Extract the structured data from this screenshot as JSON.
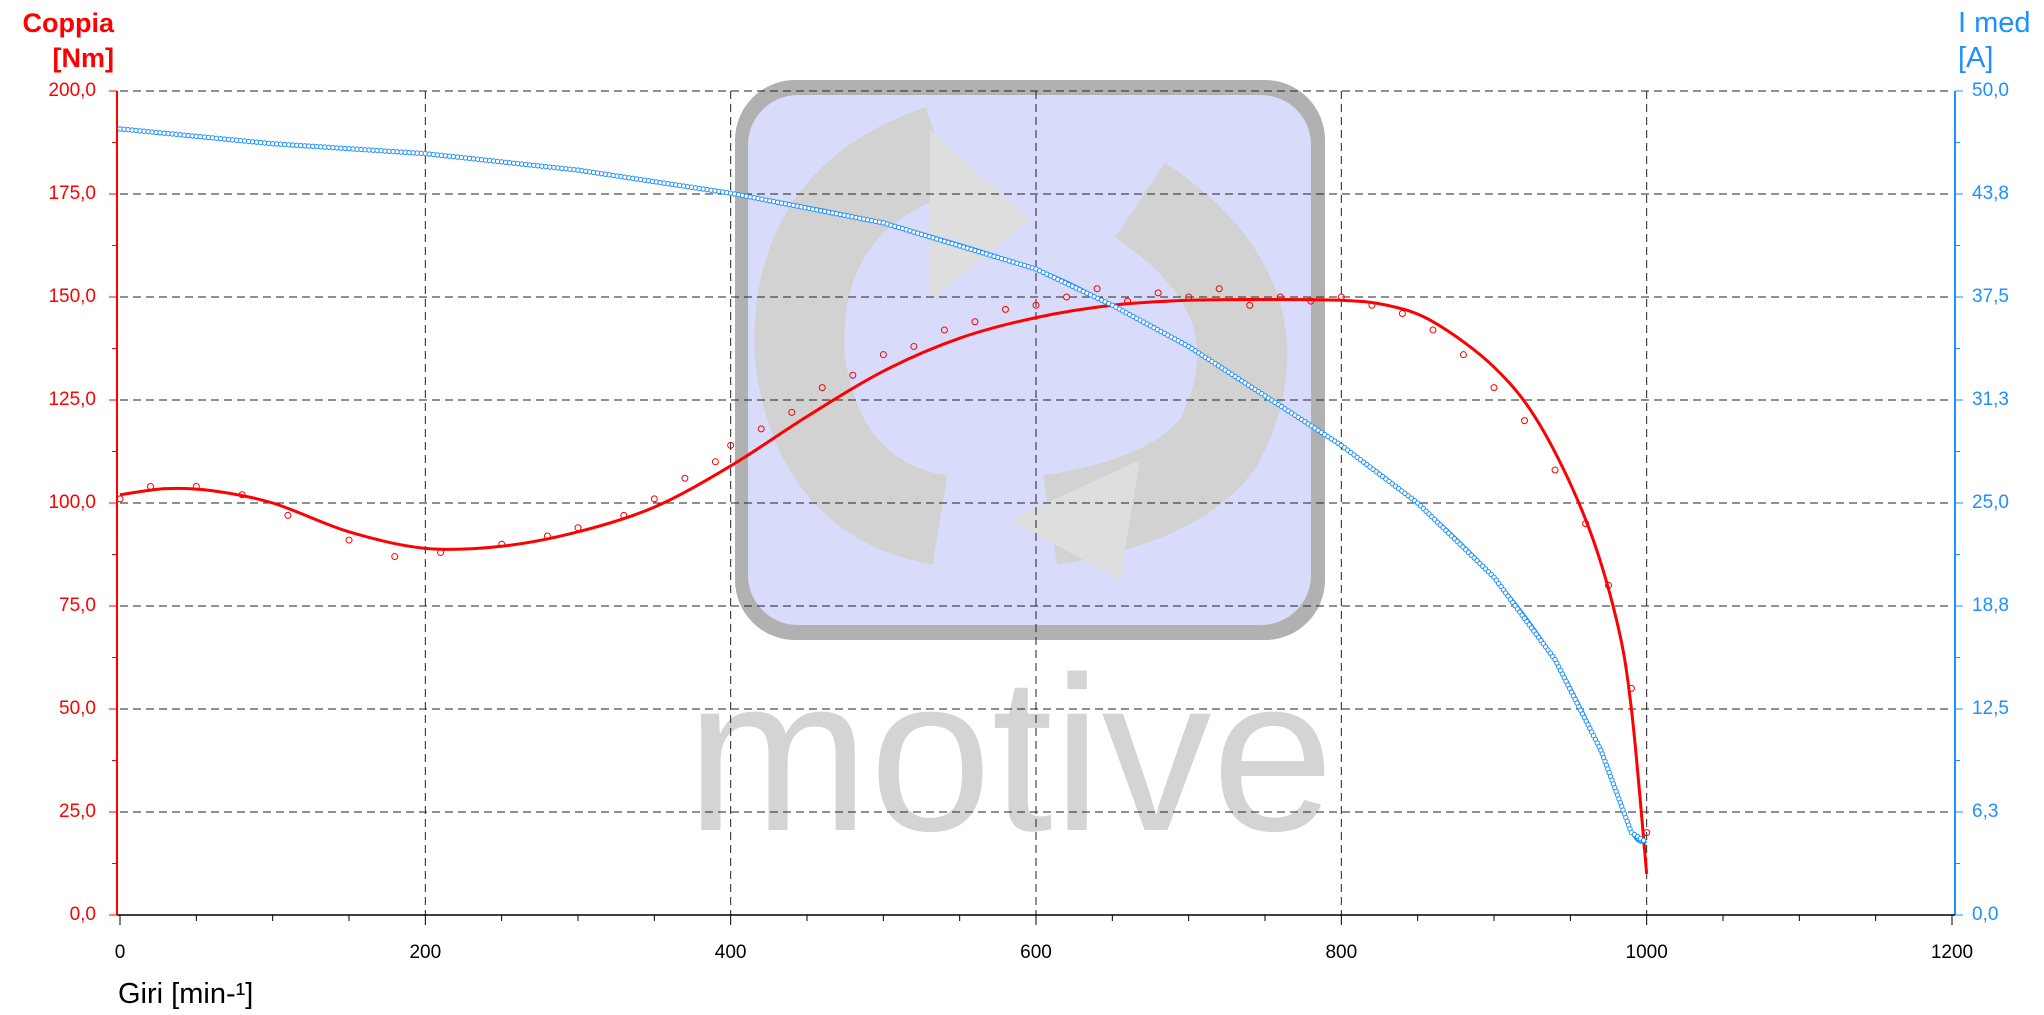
{
  "chart_data": {
    "type": "line",
    "title": "",
    "xlabel": "Giri [min-¹]",
    "ylabel_left": [
      "Coppia",
      "[Nm]"
    ],
    "ylabel_right": [
      "I med",
      "[A]"
    ],
    "xlim": [
      0,
      1200
    ],
    "ylim_left": [
      0,
      200
    ],
    "ylim_right": [
      0,
      50
    ],
    "x_ticks": [
      "0",
      "200",
      "400",
      "600",
      "800",
      "1000",
      "1200"
    ],
    "y_ticks_left": [
      "0,0",
      "25,0",
      "50,0",
      "75,0",
      "100,0",
      "125,0",
      "150,0",
      "175,0",
      "200,0"
    ],
    "y_ticks_right": [
      "0,0",
      "6,3",
      "12,5",
      "18,8",
      "25,0",
      "31,3",
      "37,5",
      "43,8",
      "50,0"
    ],
    "grid": true,
    "watermark": "motive",
    "series": [
      {
        "axis": "left",
        "style": "line",
        "color": "#ff0000",
        "points": [
          [
            0,
            102
          ],
          [
            30,
            103.5
          ],
          [
            60,
            103
          ],
          [
            100,
            100
          ],
          [
            150,
            93
          ],
          [
            200,
            89
          ],
          [
            250,
            89.5
          ],
          [
            300,
            93
          ],
          [
            350,
            99
          ],
          [
            400,
            109
          ],
          [
            450,
            121
          ],
          [
            500,
            132
          ],
          [
            550,
            140
          ],
          [
            600,
            145
          ],
          [
            650,
            148
          ],
          [
            700,
            149.2
          ],
          [
            750,
            149.4
          ],
          [
            800,
            149.2
          ],
          [
            830,
            148
          ],
          [
            860,
            144
          ],
          [
            900,
            133
          ],
          [
            930,
            119
          ],
          [
            960,
            96
          ],
          [
            980,
            72
          ],
          [
            990,
            50
          ],
          [
            1000,
            10
          ]
        ]
      },
      {
        "axis": "left",
        "style": "scatter",
        "color": "#ff0000",
        "points": [
          [
            0,
            101
          ],
          [
            20,
            104
          ],
          [
            50,
            104
          ],
          [
            80,
            102
          ],
          [
            110,
            97
          ],
          [
            150,
            91
          ],
          [
            180,
            87
          ],
          [
            210,
            88
          ],
          [
            250,
            90
          ],
          [
            280,
            92
          ],
          [
            300,
            94
          ],
          [
            330,
            97
          ],
          [
            350,
            101
          ],
          [
            370,
            106
          ],
          [
            390,
            110
          ],
          [
            400,
            114
          ],
          [
            420,
            118
          ],
          [
            440,
            122
          ],
          [
            460,
            128
          ],
          [
            480,
            131
          ],
          [
            500,
            136
          ],
          [
            520,
            138
          ],
          [
            540,
            142
          ],
          [
            560,
            144
          ],
          [
            580,
            147
          ],
          [
            600,
            148
          ],
          [
            620,
            150
          ],
          [
            640,
            152
          ],
          [
            660,
            149
          ],
          [
            680,
            151
          ],
          [
            700,
            150
          ],
          [
            720,
            152
          ],
          [
            740,
            148
          ],
          [
            760,
            150
          ],
          [
            780,
            149
          ],
          [
            800,
            150
          ],
          [
            820,
            148
          ],
          [
            840,
            146
          ],
          [
            860,
            142
          ],
          [
            880,
            136
          ],
          [
            900,
            128
          ],
          [
            920,
            120
          ],
          [
            940,
            108
          ],
          [
            960,
            95
          ],
          [
            975,
            80
          ],
          [
            990,
            55
          ],
          [
            1000,
            20
          ]
        ]
      },
      {
        "axis": "right",
        "style": "line",
        "color": "#1e90ff",
        "points": [
          [
            0,
            47.7
          ],
          [
            100,
            46.8
          ],
          [
            200,
            46.2
          ],
          [
            300,
            45.2
          ],
          [
            400,
            43.8
          ],
          [
            500,
            42.0
          ],
          [
            600,
            39.2
          ],
          [
            650,
            37.0
          ],
          [
            700,
            34.5
          ],
          [
            750,
            31.5
          ],
          [
            800,
            28.5
          ],
          [
            850,
            25.0
          ],
          [
            900,
            20.5
          ],
          [
            940,
            15.5
          ],
          [
            970,
            10.0
          ],
          [
            990,
            5.0
          ],
          [
            1000,
            4.4
          ]
        ]
      }
    ]
  }
}
